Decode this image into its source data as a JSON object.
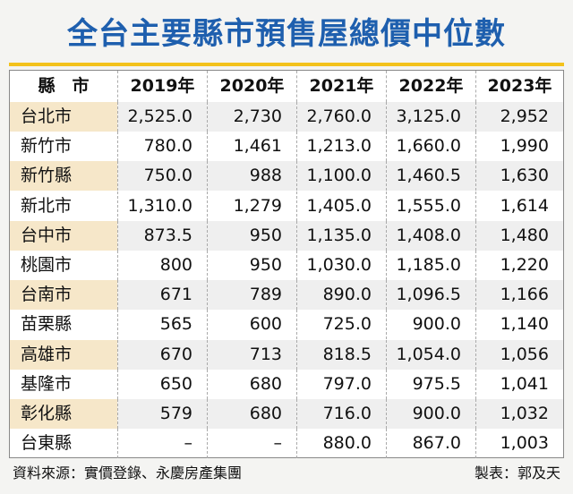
{
  "header": {
    "title": "全台主要縣市預售屋總價中位數"
  },
  "table": {
    "columns": [
      "縣　市",
      "2019年",
      "2020年",
      "2021年",
      "2022年",
      "2023年"
    ],
    "rows": [
      [
        "台北市",
        "2,525.0",
        "2,730",
        "2,760.0",
        "3,125.0",
        "2,952"
      ],
      [
        "新竹市",
        "780.0",
        "1,461",
        "1,213.0",
        "1,660.0",
        "1,990"
      ],
      [
        "新竹縣",
        "750.0",
        "988",
        "1,100.0",
        "1,460.5",
        "1,630"
      ],
      [
        "新北市",
        "1,310.0",
        "1,279",
        "1,405.0",
        "1,555.0",
        "1,614"
      ],
      [
        "台中市",
        "873.5",
        "950",
        "1,135.0",
        "1,408.0",
        "1,480"
      ],
      [
        "桃園市",
        "800",
        "950",
        "1,030.0",
        "1,185.0",
        "1,220"
      ],
      [
        "台南市",
        "671",
        "789",
        "890.0",
        "1,096.5",
        "1,166"
      ],
      [
        "苗栗縣",
        "565",
        "600",
        "725.0",
        "900.0",
        "1,140"
      ],
      [
        "高雄市",
        "670",
        "713",
        "818.5",
        "1,054.0",
        "1,056"
      ],
      [
        "基隆市",
        "650",
        "680",
        "797.0",
        "975.5",
        "1,041"
      ],
      [
        "彰化縣",
        "579",
        "680",
        "716.0",
        "900.0",
        "1,032"
      ],
      [
        "台東縣",
        "–",
        "–",
        "880.0",
        "867.0",
        "1,003"
      ]
    ]
  },
  "footer": {
    "source": "資料來源：實價登錄、永慶房產集團",
    "maker": "製表：郭及天"
  }
}
